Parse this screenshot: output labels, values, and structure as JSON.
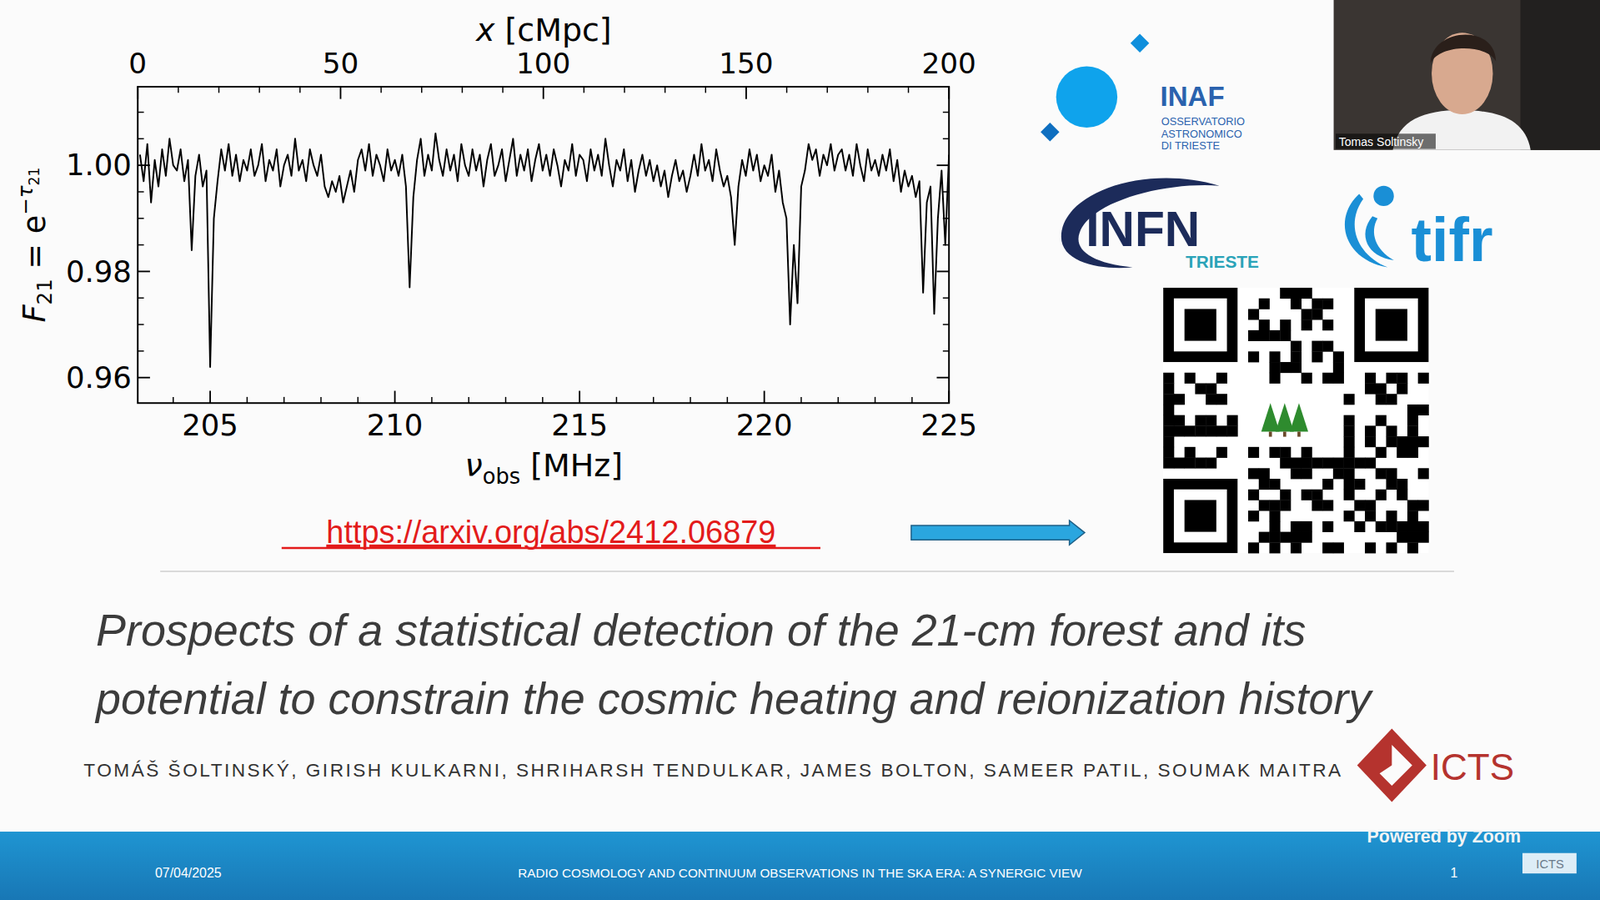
{
  "chart_data": {
    "type": "line",
    "x": [
      203.1,
      203.2,
      203.3,
      203.4,
      203.5,
      203.6,
      203.7,
      203.8,
      203.9,
      204.0,
      204.1,
      204.2,
      204.3,
      204.4,
      204.5,
      204.6,
      204.7,
      204.8,
      204.9,
      205.0,
      205.1,
      205.2,
      205.3,
      205.4,
      205.5,
      205.6,
      205.7,
      205.8,
      205.9,
      206.0,
      206.1,
      206.2,
      206.3,
      206.4,
      206.5,
      206.6,
      206.7,
      206.8,
      206.9,
      207.0,
      207.1,
      207.2,
      207.3,
      207.4,
      207.5,
      207.6,
      207.7,
      207.8,
      207.9,
      208.0,
      208.1,
      208.2,
      208.3,
      208.4,
      208.5,
      208.6,
      208.7,
      208.8,
      208.9,
      209.0,
      209.1,
      209.2,
      209.3,
      209.4,
      209.5,
      209.6,
      209.7,
      209.8,
      209.9,
      210.0,
      210.1,
      210.2,
      210.3,
      210.4,
      210.5,
      210.6,
      210.7,
      210.8,
      210.9,
      211.0,
      211.1,
      211.2,
      211.3,
      211.4,
      211.5,
      211.6,
      211.7,
      211.8,
      211.9,
      212.0,
      212.1,
      212.2,
      212.3,
      212.4,
      212.5,
      212.6,
      212.7,
      212.8,
      212.9,
      213.0,
      213.1,
      213.2,
      213.3,
      213.4,
      213.5,
      213.6,
      213.7,
      213.8,
      213.9,
      214.0,
      214.1,
      214.2,
      214.3,
      214.4,
      214.5,
      214.6,
      214.7,
      214.8,
      214.9,
      215.0,
      215.1,
      215.2,
      215.3,
      215.4,
      215.5,
      215.6,
      215.7,
      215.8,
      215.9,
      216.0,
      216.1,
      216.2,
      216.3,
      216.4,
      216.5,
      216.6,
      216.7,
      216.8,
      216.9,
      217.0,
      217.1,
      217.2,
      217.3,
      217.4,
      217.5,
      217.6,
      217.7,
      217.8,
      217.9,
      218.0,
      218.1,
      218.2,
      218.3,
      218.4,
      218.5,
      218.6,
      218.7,
      218.8,
      218.9,
      219.0,
      219.1,
      219.2,
      219.3,
      219.4,
      219.5,
      219.6,
      219.7,
      219.8,
      219.9,
      220.0,
      220.1,
      220.2,
      220.3,
      220.4,
      220.5,
      220.6,
      220.7,
      220.8,
      220.9,
      221.0,
      221.1,
      221.2,
      221.3,
      221.4,
      221.5,
      221.6,
      221.7,
      221.8,
      221.9,
      222.0,
      222.1,
      222.2,
      222.3,
      222.4,
      222.5,
      222.6,
      222.7,
      222.8,
      222.9,
      223.0,
      223.1,
      223.2,
      223.3,
      223.4,
      223.5,
      223.6,
      223.7,
      223.8,
      223.9,
      224.0,
      224.1,
      224.2,
      224.3,
      224.4,
      224.5,
      224.6,
      224.7,
      224.8,
      224.9,
      225.0
    ],
    "values": [
      1.002,
      0.997,
      1.004,
      0.993,
      1.001,
      0.996,
      1.003,
      0.998,
      1.005,
      1.0,
      0.999,
      1.003,
      0.997,
      1.001,
      0.984,
      0.998,
      1.002,
      0.996,
      0.999,
      0.962,
      0.99,
      0.997,
      1.003,
      0.999,
      1.004,
      0.998,
      1.002,
      0.997,
      1.001,
      0.999,
      1.003,
      0.998,
      1.0,
      1.004,
      0.997,
      1.001,
      0.999,
      1.003,
      0.996,
      1.0,
      1.002,
      0.998,
      1.005,
      0.999,
      1.001,
      0.997,
      1.003,
      1.0,
      0.998,
      1.002,
      0.996,
      0.994,
      0.997,
      0.995,
      0.998,
      0.993,
      0.996,
      0.999,
      0.995,
      1.001,
      1.003,
      0.999,
      1.004,
      0.998,
      1.002,
      1.0,
      0.997,
      1.003,
      0.999,
      1.001,
      0.998,
      1.002,
      0.996,
      0.977,
      0.994,
      1.001,
      1.005,
      0.998,
      1.002,
      0.999,
      1.006,
      1.001,
      0.998,
      1.003,
      0.999,
      1.002,
      0.997,
      1.004,
      1.0,
      0.998,
      1.003,
      0.999,
      1.002,
      0.996,
      1.001,
      1.004,
      0.998,
      1.0,
      1.003,
      0.997,
      1.001,
      1.005,
      0.998,
      1.002,
      0.999,
      1.003,
      0.997,
      1.001,
      1.004,
      0.999,
      1.002,
      0.998,
      1.003,
      1.0,
      0.996,
      1.001,
      0.999,
      1.004,
      0.998,
      1.002,
      1.001,
      0.997,
      1.003,
      0.999,
      1.002,
      0.998,
      1.005,
      1.0,
      0.996,
      1.001,
      0.999,
      1.003,
      0.997,
      1.001,
      0.995,
      0.999,
      1.002,
      0.998,
      1.001,
      0.997,
      1.0,
      0.996,
      0.999,
      0.994,
      0.998,
      1.001,
      0.997,
      0.999,
      0.995,
      0.998,
      1.002,
      0.998,
      1.004,
      0.999,
      1.001,
      0.997,
      1.003,
      0.999,
      0.996,
      0.998,
      0.994,
      0.985,
      0.996,
      1.001,
      0.998,
      1.003,
      0.999,
      1.002,
      0.997,
      1.0,
      0.998,
      1.002,
      0.995,
      0.999,
      0.993,
      0.99,
      0.97,
      0.985,
      0.974,
      0.996,
      0.999,
      1.004,
      1.001,
      1.003,
      0.998,
      1.002,
      1.0,
      1.004,
      0.999,
      1.002,
      1.003,
      0.999,
      1.002,
      0.998,
      1.004,
      1.0,
      0.997,
      1.003,
      0.999,
      1.001,
      0.998,
      1.002,
      0.999,
      1.003,
      0.997,
      1.001,
      0.995,
      0.999,
      0.996,
      0.998,
      0.994,
      0.997,
      0.976,
      0.993,
      0.996,
      0.972,
      0.99,
      0.999,
      0.985,
      1.002
    ],
    "color": "#000000",
    "xlim": [
      203.04,
      225
    ],
    "xticks": [
      205,
      210,
      215,
      220,
      225
    ],
    "x_minor_ticks": [
      204,
      206,
      207,
      208,
      209,
      211,
      212,
      213,
      214,
      216,
      217,
      218,
      219,
      221,
      222,
      223,
      224
    ],
    "xlabel": [
      "ν",
      "obs",
      " [MHz]"
    ],
    "x2lim": [
      0,
      200
    ],
    "x2ticks": [
      0,
      50,
      100,
      150,
      200
    ],
    "x2_minor_ticks": [
      10,
      20,
      30,
      40,
      60,
      70,
      80,
      90,
      110,
      120,
      130,
      140,
      160,
      170,
      180,
      190
    ],
    "x2label": [
      "x",
      " [cMpc]"
    ],
    "ylim": [
      0.9552,
      1.0148
    ],
    "yticks": [
      0.96,
      0.98,
      {
        "value": 1,
        "label": "1.00"
      }
    ],
    "y_minor_ticks": [
      0.965,
      0.97,
      0.975,
      0.985,
      0.99,
      0.995,
      1.005,
      1.01
    ],
    "ylabel": [
      "F",
      "21",
      " = e",
      "−τ",
      "21"
    ]
  },
  "slide": {
    "url": "https://arxiv.org/abs/2412.06879",
    "title": [
      "Prospects of a statistical detection of the 21-cm forest and its",
      "potential to constrain the cosmic heating and reionization history"
    ],
    "authors": "TOMÁŠ ŠOLTINSKÝ, GIRISH KULKARNI, SHRIHARSH TENDULKAR, JAMES BOLTON, SAMEER PATIL, SOUMAK MAITRA",
    "logos": {
      "inaf": [
        "INAF",
        "OSSERVATORIO",
        "ASTRONOMICO",
        "DI TRIESTE"
      ],
      "infn": [
        "INFN",
        "TRIESTE"
      ],
      "tifr": "tifr",
      "icts": "ICTS"
    },
    "speaker": "Tomas Soltinsky",
    "overlay": "Powered by Zoom",
    "footer": {
      "date": "07/04/2025",
      "event": "RADIO COSMOLOGY AND CONTINUUM OBSERVATIONS IN THE SKA ERA: A SYNERGIC VIEW",
      "page": 1,
      "badge": "ICTS"
    }
  }
}
